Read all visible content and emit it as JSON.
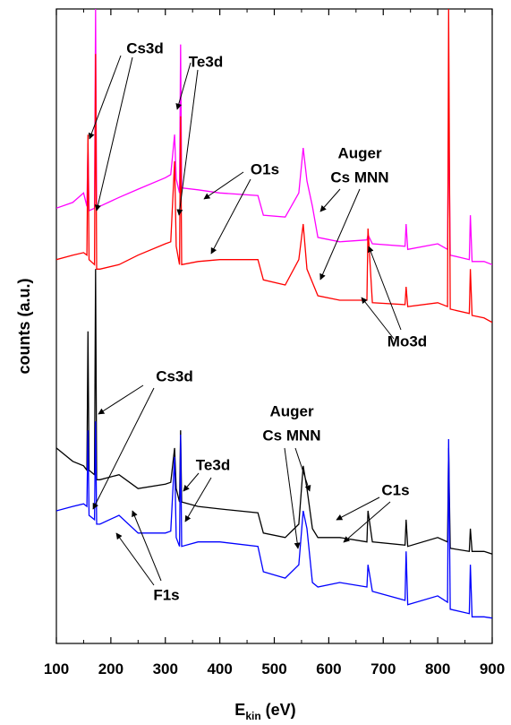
{
  "chart_data": {
    "type": "line",
    "xlabel": "E",
    "xlabel_sub": "kin",
    "xlabel_unit": "(eV)",
    "ylabel": "counts (a.u.)",
    "xlim": [
      100,
      900
    ],
    "xticks": [
      100,
      200,
      300,
      400,
      500,
      600,
      700,
      800,
      900
    ],
    "ylim": [
      0,
      100
    ],
    "x": [
      100,
      130,
      150,
      156,
      158,
      160,
      170,
      172,
      174,
      180,
      215,
      250,
      300,
      310,
      317,
      320,
      326,
      328,
      330,
      360,
      400,
      470,
      480,
      520,
      545,
      553,
      560,
      570,
      580,
      620,
      670,
      672,
      680,
      740,
      742,
      745,
      800,
      818,
      820,
      823,
      858,
      860,
      863,
      885,
      900
    ],
    "series": [
      {
        "color": "#ff00ff",
        "values": [
          68.6,
          69.5,
          71.0,
          68.9,
          78.8,
          68.2,
          68.6,
          100,
          68.6,
          68.9,
          70.3,
          71.6,
          73.4,
          73.9,
          80.2,
          73.2,
          71.0,
          94.4,
          71.8,
          71.5,
          71.0,
          70.6,
          67.5,
          67.2,
          71.0,
          78.1,
          72.9,
          68.9,
          64.0,
          63.3,
          63.6,
          64.4,
          63.0,
          62.6,
          66.1,
          62.1,
          63.0,
          62.1,
          84.5,
          61.2,
          60.5,
          67.5,
          60.2,
          60.2,
          59.7
        ]
      },
      {
        "color": "#ff0000",
        "values": [
          60.5,
          61.2,
          61.6,
          61.2,
          80.2,
          60.5,
          59.7,
          92.9,
          59.0,
          59.0,
          59.7,
          61.2,
          63.0,
          63.3,
          76.0,
          62.6,
          59.7,
          83.1,
          59.7,
          60.2,
          60.5,
          60.5,
          57.3,
          56.5,
          60.5,
          66.1,
          59.0,
          56.9,
          54.8,
          54.1,
          54.1,
          65.4,
          53.7,
          53.4,
          56.2,
          53.1,
          53.7,
          53.1,
          100,
          52.7,
          52.0,
          59.0,
          51.7,
          51.3,
          50.6
        ]
      },
      {
        "color": "#000000",
        "values": [
          30.8,
          28.7,
          28.0,
          27.3,
          49.2,
          27.3,
          26.6,
          59.0,
          25.8,
          25.8,
          26.6,
          24.4,
          25.1,
          25.4,
          30.8,
          24.4,
          22.3,
          33.6,
          22.3,
          21.6,
          21.2,
          20.6,
          17.4,
          16.7,
          18.8,
          28.0,
          24.4,
          18.1,
          16.7,
          16.7,
          16.0,
          20.9,
          16.0,
          15.5,
          19.5,
          15.3,
          16.7,
          16.0,
          30.8,
          15.0,
          14.5,
          18.1,
          14.5,
          14.5,
          14.1
        ]
      },
      {
        "color": "#0000ff",
        "values": [
          20.9,
          21.6,
          22.0,
          21.6,
          33.6,
          20.2,
          19.5,
          35.0,
          18.8,
          18.8,
          20.2,
          17.4,
          17.4,
          17.7,
          29.4,
          16.7,
          15.3,
          32.9,
          15.3,
          16.0,
          16.0,
          15.3,
          11.3,
          10.3,
          12.4,
          20.9,
          18.1,
          9.6,
          8.9,
          9.6,
          8.9,
          12.4,
          8.2,
          6.8,
          14.5,
          6.1,
          7.5,
          6.5,
          32.2,
          5.4,
          4.7,
          12.4,
          4.2,
          4.2,
          4.0
        ]
      }
    ],
    "annotations": [
      "Cs3d",
      "Te3d",
      "O1s",
      "Auger",
      "Cs MNN",
      "Mo3d",
      "Cs3d",
      "Te3d",
      "Auger",
      "Cs MNN",
      "C1s",
      "F1s"
    ]
  }
}
